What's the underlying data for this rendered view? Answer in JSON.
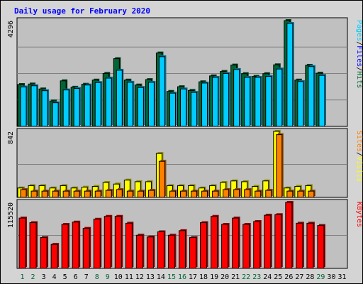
{
  "chart_data": {
    "type": "bar",
    "title": "Daily usage for February 2020",
    "days": [
      "1",
      "2",
      "3",
      "4",
      "5",
      "6",
      "7",
      "8",
      "9",
      "10",
      "11",
      "12",
      "13",
      "14",
      "15",
      "16",
      "17",
      "18",
      "19",
      "20",
      "21",
      "22",
      "23",
      "24",
      "25",
      "26",
      "27",
      "28",
      "29",
      "30",
      "31"
    ],
    "weekend_days": [
      1,
      2,
      8,
      9,
      15,
      16,
      22,
      23,
      29
    ],
    "colors": {
      "title": "#0000ff",
      "hits": "#006633",
      "files": "#00ccff",
      "pages": "#00ccff",
      "sites": "#ff8000",
      "visits": "#ffff00",
      "kbytes": "#ff0000",
      "plot_bg": "#c0c0c0",
      "frame_bg": "#d4d4d4",
      "weekday_label": "#000000",
      "weekend_label": "#006633"
    },
    "panels": [
      {
        "id": "requests",
        "ymax_label": "4296",
        "ymax": 4296,
        "legend": [
          {
            "text": "Pages",
            "color": "#00ccff"
          },
          {
            "text": "/",
            "color": "#000000"
          },
          {
            "text": "Files",
            "color": "#0000ff"
          },
          {
            "text": "/",
            "color": "#000000"
          },
          {
            "text": "Hits",
            "color": "#006633"
          }
        ],
        "series": [
          {
            "name": "Hits",
            "role": "back",
            "values": [
              1700,
              1720,
              1520,
              1030,
              1850,
              1590,
              1710,
              1880,
              2150,
              2750,
              1880,
              1680,
              1900,
              2980,
              1420,
              1610,
              1460,
              1810,
              2050,
              2230,
              2490,
              2140,
              2030,
              2140,
              2500,
              4296,
              1880,
              2480,
              2160,
              0,
              0
            ]
          },
          {
            "name": "Files",
            "role": "front",
            "values": [
              1600,
              1650,
              1450,
              960,
              1480,
              1540,
              1680,
              1780,
              1960,
              2280,
              1790,
              1580,
              1790,
              2830,
              1350,
              1520,
              1380,
              1760,
              1990,
              2150,
              2310,
              1990,
              1990,
              2030,
              2330,
              4180,
              1820,
              2430,
              2070,
              0,
              0
            ]
          }
        ]
      },
      {
        "id": "visits",
        "ymax_label": "842",
        "ymax": 842,
        "legend": [
          {
            "text": "Sites",
            "color": "#ff8000"
          },
          {
            "text": "/",
            "color": "#000000"
          },
          {
            "text": "Visits",
            "color": "#ffff00"
          }
        ],
        "series": [
          {
            "name": "Visits",
            "role": "back",
            "values": [
              120,
              150,
              150,
              120,
              150,
              120,
              130,
              140,
              190,
              170,
              220,
              200,
              200,
              560,
              150,
              150,
              150,
              120,
              150,
              190,
              210,
              200,
              140,
              210,
              842,
              120,
              140,
              150,
              0,
              0,
              0
            ]
          },
          {
            "name": "Sites",
            "role": "front",
            "values": [
              100,
              80,
              80,
              80,
              80,
              80,
              80,
              80,
              90,
              100,
              80,
              80,
              90,
              460,
              80,
              80,
              80,
              80,
              80,
              100,
              100,
              100,
              80,
              90,
              800,
              80,
              80,
              80,
              0,
              0,
              0
            ]
          }
        ]
      },
      {
        "id": "kbytes",
        "ymax_label": "115520",
        "ymax": 115520,
        "legend": [
          {
            "text": "KBytes",
            "color": "#ff0000"
          }
        ],
        "series": [
          {
            "name": "KBytes",
            "role": "single",
            "values": [
              88000,
              80000,
              54000,
              42000,
              77000,
              81000,
              70000,
              86000,
              91000,
              91000,
              79000,
              58000,
              55000,
              64000,
              58000,
              66000,
              54000,
              80000,
              91000,
              77000,
              88000,
              77000,
              82000,
              93000,
              94000,
              115520,
              79000,
              79000,
              75000,
              0,
              0
            ]
          }
        ]
      }
    ]
  }
}
